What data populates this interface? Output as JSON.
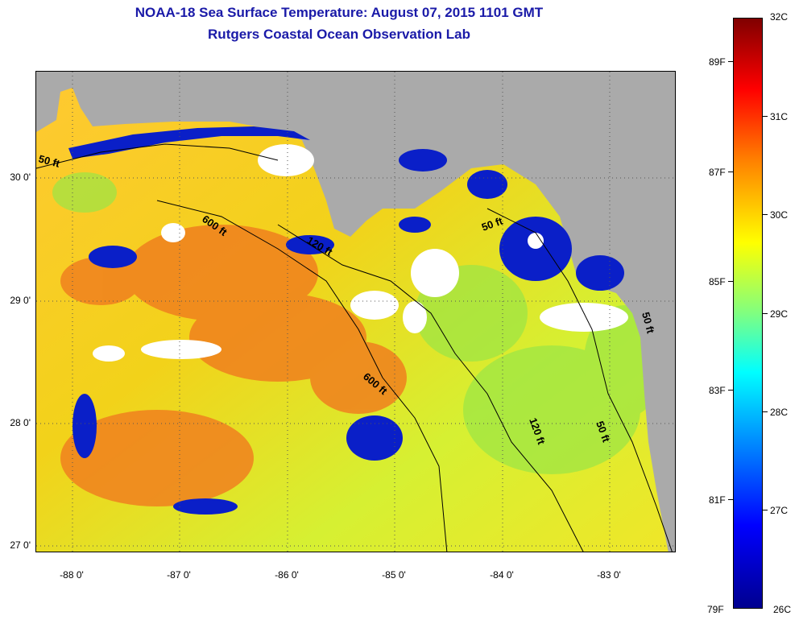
{
  "title": {
    "line1": "NOAA-18 Sea Surface Temperature:  August 07, 2015 1101 GMT",
    "line2": "Rutgers Coastal Ocean Observation Lab"
  },
  "map": {
    "lat_labels": [
      "30 0'",
      "29 0'",
      "28 0'",
      "27 0'"
    ],
    "lon_labels": [
      "-88 0'",
      "-87 0'",
      "-86 0'",
      "-85 0'",
      "-84 0'",
      "-83 0'"
    ],
    "contour_labels": {
      "west_50": "50 ft",
      "west_600": "600 ft",
      "mid_120": "120 ft",
      "south_600": "600 ft",
      "east_50_top": "50 ft",
      "east_120": "120 ft",
      "east_50_bottom": "50 ft",
      "east_50_coast": "50 ft"
    },
    "colors": {
      "land": "#aaaaaa",
      "cloud": "#ffffff",
      "warm_water": "#ffd700",
      "hot_water": "#f07a20",
      "cool_water": "#0a1fc8"
    }
  },
  "colorbar": {
    "celsius": [
      "32C",
      "31C",
      "30C",
      "29C",
      "28C",
      "27C",
      "26C"
    ],
    "fahrenheit": [
      "89F",
      "87F",
      "85F",
      "83F",
      "81F",
      "79F"
    ]
  }
}
